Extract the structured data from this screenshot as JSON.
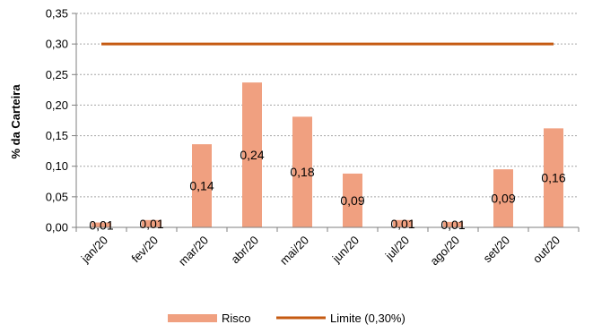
{
  "chart_data": {
    "type": "bar",
    "title": "",
    "xlabel": "",
    "ylabel": "% da Carteira",
    "ylim": [
      0,
      0.35
    ],
    "yticks": [
      "0,00",
      "0,05",
      "0,10",
      "0,15",
      "0,20",
      "0,25",
      "0,30",
      "0,35"
    ],
    "yticks_values": [
      0,
      0.05,
      0.1,
      0.15,
      0.2,
      0.25,
      0.3,
      0.35
    ],
    "grid": true,
    "categories": [
      "jan/20",
      "fev/20",
      "mar/20",
      "abr/20",
      "mai/20",
      "jun/20",
      "jul/20",
      "ago/20",
      "set/20",
      "out/20"
    ],
    "series": [
      {
        "name": "Risco",
        "type": "bar",
        "color": "#F0A080",
        "values": [
          0.008,
          0.012,
          0.136,
          0.237,
          0.181,
          0.088,
          0.012,
          0.009,
          0.095,
          0.162
        ],
        "labels": [
          "0,01",
          "0,01",
          "0,14",
          "0,24",
          "0,18",
          "0,09",
          "0,01",
          "0,01",
          "0,09",
          "0,16"
        ]
      },
      {
        "name": "Limite (0,30%)",
        "type": "line",
        "color": "#C55A11",
        "values": [
          0.3,
          0.3,
          0.3,
          0.3,
          0.3,
          0.3,
          0.3,
          0.3,
          0.3,
          0.3
        ]
      }
    ],
    "legend_position": "bottom"
  }
}
